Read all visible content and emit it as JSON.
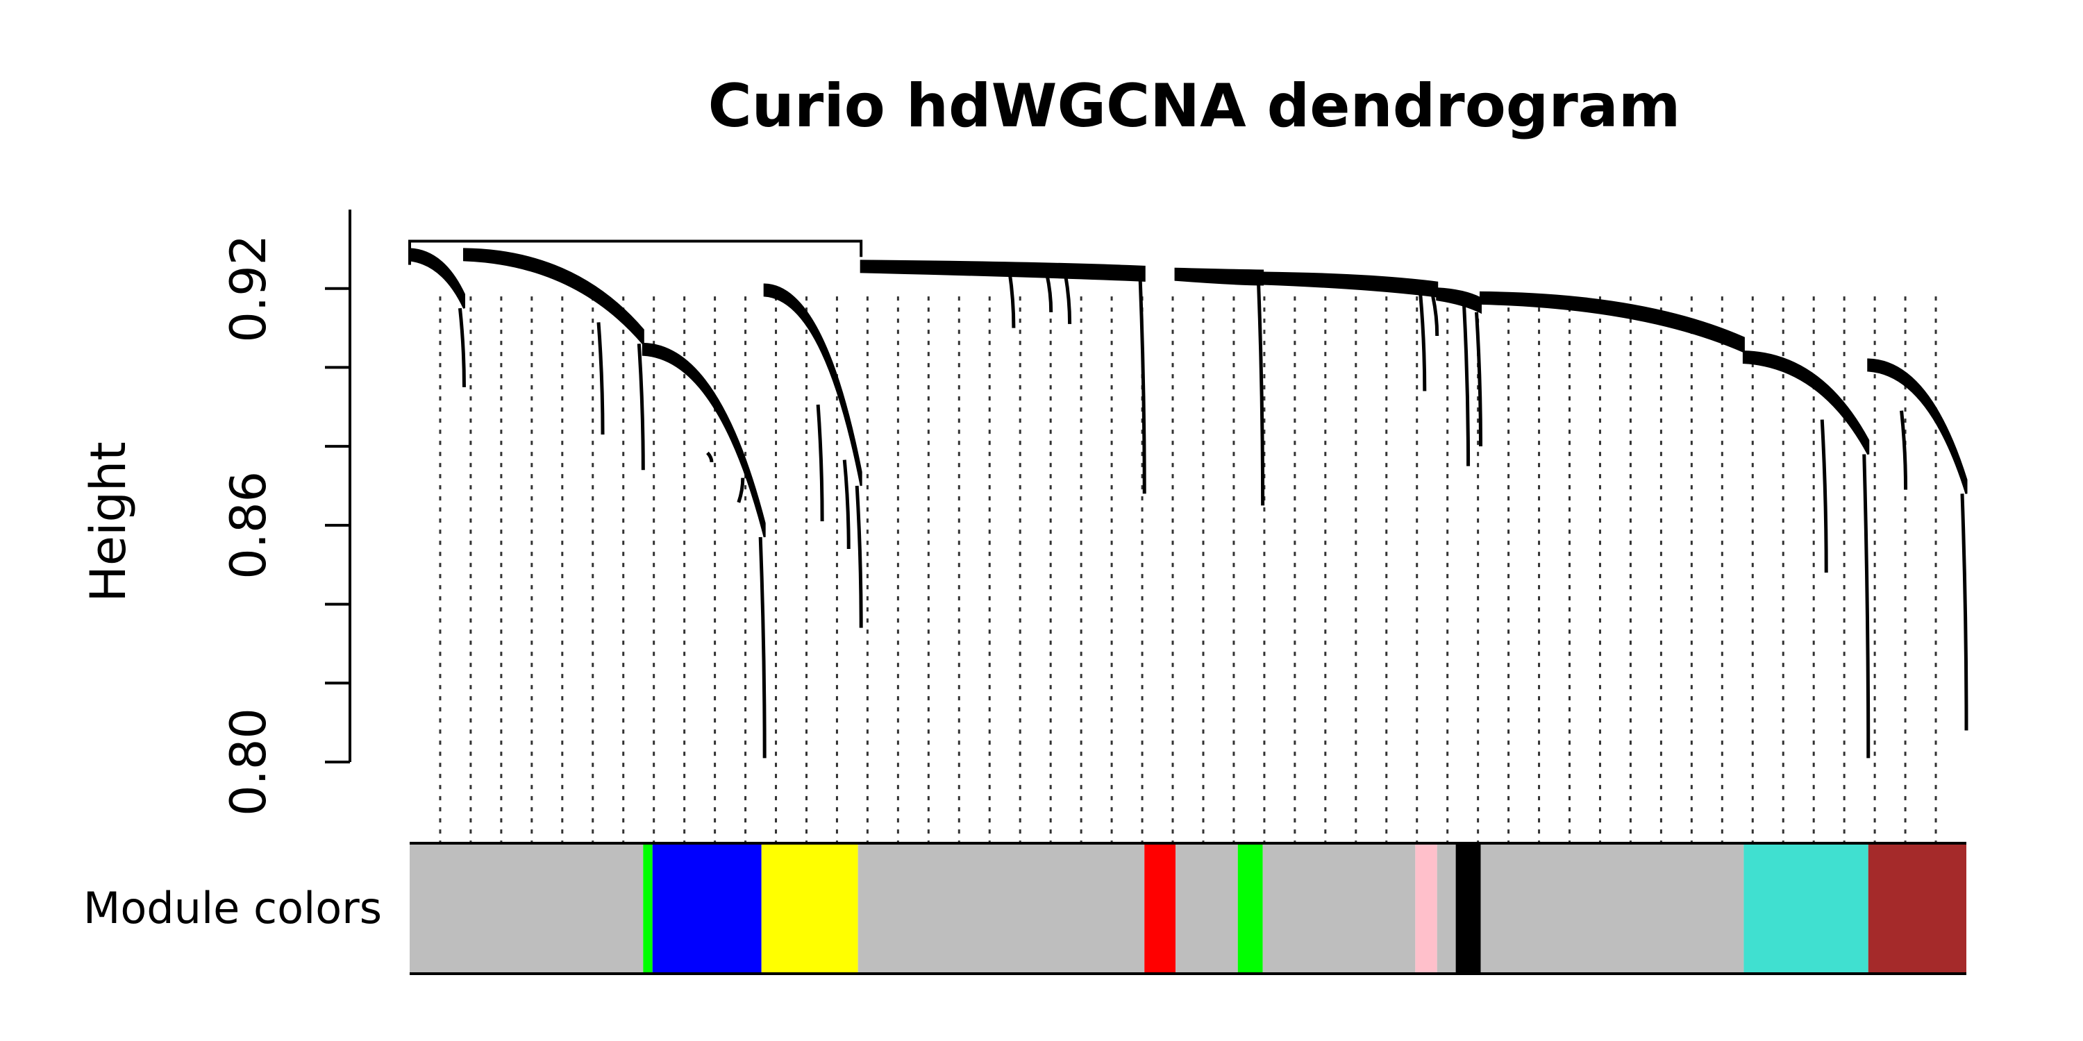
{
  "chart_data": {
    "type": "dendrogram",
    "title": "Curio hdWGCNA dendrogram",
    "ylabel": "Height",
    "ylim": [
      0.8,
      0.94
    ],
    "yticks": [
      0.8,
      0.82,
      0.84,
      0.86,
      0.88,
      0.9,
      0.92
    ],
    "ytick_labels": [
      "0.80",
      "",
      "",
      "0.86",
      "",
      "",
      "0.92"
    ],
    "color_bar_label": "Module colors",
    "colors": {
      "grey": "#bebebe",
      "green": "#00ff00",
      "blue": "#0000ff",
      "yellow": "#ffff00",
      "red": "#ff0000",
      "pink": "#ffc0cb",
      "black": "#000000",
      "turquoise": "#40e0d0",
      "brown": "#a52a2a"
    },
    "modules": [
      {
        "color": "grey",
        "start": 0.0,
        "end": 0.15
      },
      {
        "color": "green",
        "start": 0.15,
        "end": 0.156
      },
      {
        "color": "blue",
        "start": 0.156,
        "end": 0.226
      },
      {
        "color": "yellow",
        "start": 0.226,
        "end": 0.288
      },
      {
        "color": "grey",
        "start": 0.288,
        "end": 0.472
      },
      {
        "color": "red",
        "start": 0.472,
        "end": 0.492
      },
      {
        "color": "grey",
        "start": 0.492,
        "end": 0.532
      },
      {
        "color": "green",
        "start": 0.532,
        "end": 0.548
      },
      {
        "color": "grey",
        "start": 0.548,
        "end": 0.646
      },
      {
        "color": "pink",
        "start": 0.646,
        "end": 0.66
      },
      {
        "color": "grey",
        "start": 0.66,
        "end": 0.672
      },
      {
        "color": "black",
        "start": 0.672,
        "end": 0.688
      },
      {
        "color": "grey",
        "start": 0.688,
        "end": 0.857
      },
      {
        "color": "turquoise",
        "start": 0.857,
        "end": 0.937
      },
      {
        "color": "brown",
        "start": 0.937,
        "end": 1.0
      }
    ],
    "dendrogram": {
      "root_height": 0.932,
      "root_span": [
        0.0,
        0.29
      ],
      "clusters": [
        {
          "x_start": 0.0,
          "x_end": 0.035,
          "top": 0.93,
          "bottom": 0.915,
          "drops": [
            {
              "x": 0.035,
              "bottom": 0.895
            }
          ]
        },
        {
          "x_start": 0.035,
          "x_end": 0.15,
          "top": 0.93,
          "bottom": 0.906,
          "drops": [
            {
              "x": 0.124,
              "bottom": 0.883
            },
            {
              "x": 0.15,
              "bottom": 0.874
            }
          ]
        },
        {
          "x_start": 0.15,
          "x_end": 0.228,
          "top": 0.906,
          "bottom": 0.857,
          "drops": [
            {
              "x": 0.194,
              "bottom": 0.876
            },
            {
              "x": 0.214,
              "bottom": 0.872
            },
            {
              "x": 0.228,
              "bottom": 0.801
            }
          ]
        },
        {
          "x_start": 0.228,
          "x_end": 0.29,
          "top": 0.921,
          "bottom": 0.87,
          "drops": [
            {
              "x": 0.265,
              "bottom": 0.861
            },
            {
              "x": 0.282,
              "bottom": 0.854
            },
            {
              "x": 0.29,
              "bottom": 0.834
            }
          ]
        },
        {
          "x_start": 0.29,
          "x_end": 0.472,
          "top": 0.927,
          "bottom": 0.922,
          "drops": [
            {
              "x": 0.388,
              "bottom": 0.91
            },
            {
              "x": 0.412,
              "bottom": 0.914
            },
            {
              "x": 0.424,
              "bottom": 0.911
            },
            {
              "x": 0.472,
              "bottom": 0.868
            }
          ]
        },
        {
          "x_start": 0.492,
          "x_end": 0.548,
          "top": 0.925,
          "bottom": 0.921,
          "drops": [
            {
              "x": 0.548,
              "bottom": 0.865
            }
          ]
        },
        {
          "x_start": 0.548,
          "x_end": 0.66,
          "top": 0.924,
          "bottom": 0.918,
          "drops": [
            {
              "x": 0.652,
              "bottom": 0.894
            },
            {
              "x": 0.66,
              "bottom": 0.908
            }
          ]
        },
        {
          "x_start": 0.66,
          "x_end": 0.688,
          "top": 0.92,
          "bottom": 0.914,
          "drops": [
            {
              "x": 0.68,
              "bottom": 0.875
            },
            {
              "x": 0.688,
              "bottom": 0.88
            }
          ]
        },
        {
          "x_start": 0.688,
          "x_end": 0.857,
          "top": 0.919,
          "bottom": 0.904,
          "drops": []
        },
        {
          "x_start": 0.857,
          "x_end": 0.937,
          "top": 0.904,
          "bottom": 0.878,
          "drops": [
            {
              "x": 0.91,
              "bottom": 0.848
            },
            {
              "x": 0.937,
              "bottom": 0.801
            }
          ]
        },
        {
          "x_start": 0.937,
          "x_end": 1.0,
          "top": 0.902,
          "bottom": 0.868,
          "drops": [
            {
              "x": 0.961,
              "bottom": 0.869
            },
            {
              "x": 1.0,
              "bottom": 0.808
            }
          ]
        }
      ],
      "leaf_lines": 51
    }
  }
}
